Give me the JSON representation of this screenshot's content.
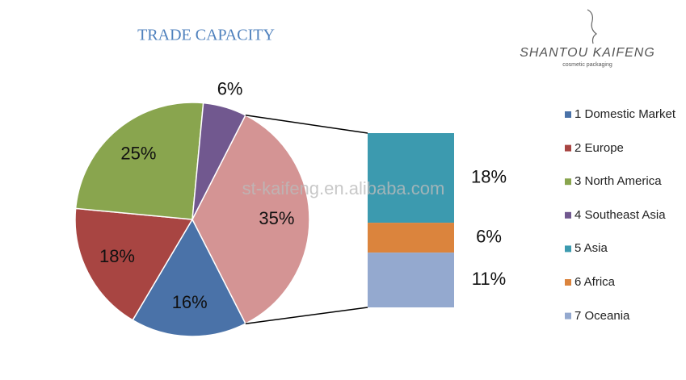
{
  "chart_data": {
    "type": "pie-of-bar",
    "title": "TRADE CAPACITY",
    "slices": {
      "names": [
        "1 Domestic Market",
        "2 Europe",
        "3 North America",
        "4 Southeast Asia"
      ],
      "colors": [
        "#4a72a8",
        "#a84542",
        "#89a54e",
        "#71588f"
      ],
      "values": [
        16,
        18,
        25,
        6
      ],
      "value_labels": [
        "16%",
        "18%",
        "25%",
        "6%"
      ]
    },
    "other": {
      "color": "#d49494",
      "value": 35,
      "value_label": "35%"
    },
    "breakdown": {
      "names": [
        "5 Asia",
        "6 Africa",
        "7 Oceania"
      ],
      "colors": [
        "#3c9aaf",
        "#db843d",
        "#94a9cf"
      ],
      "values": [
        18,
        6,
        11
      ],
      "value_labels": [
        "18%",
        "6%",
        "11%"
      ]
    },
    "legend": "right"
  },
  "watermark": "st-kaifeng.en.alibaba.com",
  "logo": {
    "title": "SHANTOU KAIFENG",
    "subtitle": "cosmetic packaging"
  }
}
